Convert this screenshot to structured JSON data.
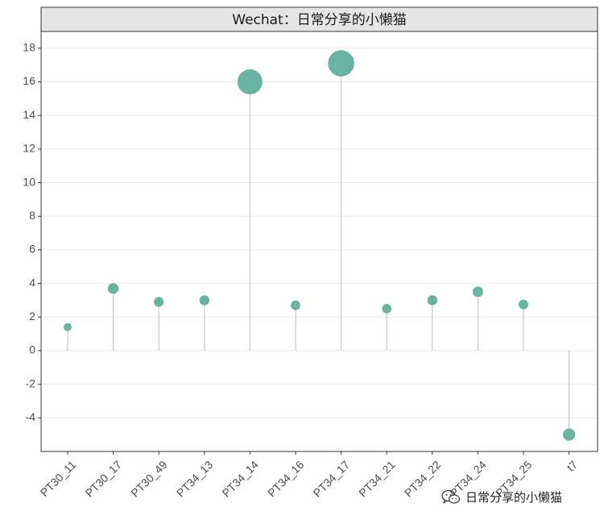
{
  "chart_data": {
    "type": "lollipop",
    "title": "Wechat：日常分享的小懒猫",
    "categories": [
      "PT30_11",
      "PT30_17",
      "PT30_49",
      "PT34_13",
      "PT34_14",
      "PT34_16",
      "PT34_17",
      "PT34_21",
      "PT34_22",
      "PT34_24",
      "PT34_25",
      "t7"
    ],
    "values": [
      1.4,
      3.7,
      2.9,
      3.0,
      16.0,
      2.7,
      17.1,
      2.5,
      3.0,
      3.5,
      2.75,
      -5.0
    ],
    "y_ticks": [
      -4,
      -2,
      0,
      2,
      4,
      6,
      8,
      10,
      12,
      14,
      16,
      18
    ],
    "ylim": [
      -6,
      19
    ],
    "xlabel": "",
    "ylabel": "",
    "grid": true,
    "point_color": "#69b3a2",
    "stem_color": "#bdbdbd"
  },
  "watermark": {
    "text": "日常分享的小懒猫",
    "icon": "wechat-icon"
  }
}
